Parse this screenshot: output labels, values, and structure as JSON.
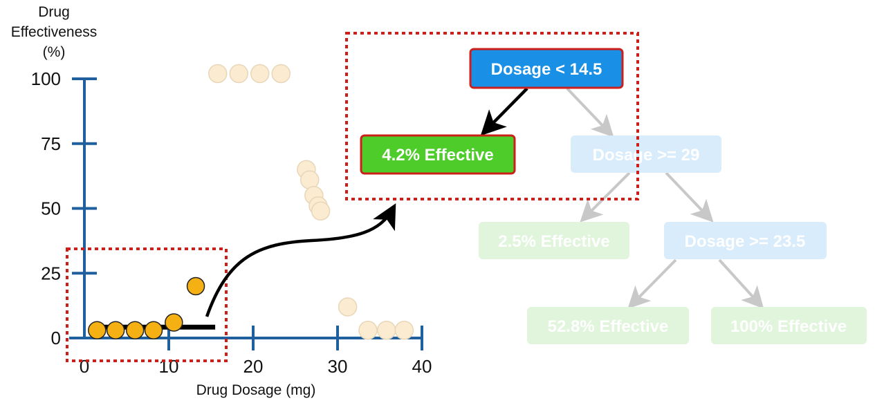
{
  "colors": {
    "axis": "#1f5f9e",
    "point_active": "#f5b014",
    "point_faded": "#faebd1",
    "fit_line": "#000000",
    "highlight_box": "#cc1f1a",
    "node_root": "#1a8fe6",
    "node_leaf_active": "#4dcc2a",
    "node_faded_blue": "#d8ecfb",
    "node_faded_green": "#e0f5dc",
    "edge_faded": "#c8c8c8"
  },
  "chart_data": {
    "type": "scatter",
    "title": "",
    "xlabel": "Drug Dosage (mg)",
    "ylabel_lines": [
      "Drug",
      "Effectiveness",
      "(%)"
    ],
    "xlim": [
      0,
      40
    ],
    "ylim": [
      0,
      100
    ],
    "xticks": [
      0,
      10,
      20,
      30,
      40
    ],
    "yticks": [
      0,
      25,
      50,
      75,
      100
    ],
    "highlighted_points": [
      {
        "x": 1.5,
        "y": 3
      },
      {
        "x": 3.7,
        "y": 3
      },
      {
        "x": 6.0,
        "y": 3
      },
      {
        "x": 8.2,
        "y": 3
      },
      {
        "x": 10.6,
        "y": 6
      },
      {
        "x": 13.2,
        "y": 20
      }
    ],
    "faded_points": [
      {
        "x": 15.8,
        "y": 102
      },
      {
        "x": 18.3,
        "y": 102
      },
      {
        "x": 20.8,
        "y": 102
      },
      {
        "x": 23.3,
        "y": 102
      },
      {
        "x": 26.3,
        "y": 65
      },
      {
        "x": 26.7,
        "y": 61
      },
      {
        "x": 27.2,
        "y": 55
      },
      {
        "x": 27.7,
        "y": 51
      },
      {
        "x": 28.0,
        "y": 49
      },
      {
        "x": 31.2,
        "y": 12
      },
      {
        "x": 33.6,
        "y": 3
      },
      {
        "x": 35.8,
        "y": 3
      },
      {
        "x": 37.9,
        "y": 3
      }
    ],
    "fit_segment": {
      "x_start": 1.0,
      "x_end": 15.5,
      "y": 4.2
    }
  },
  "tree": {
    "root": "Dosage < 14.5",
    "leaf_active": "4.2% Effective",
    "node_29": "Dosage >= 29",
    "leaf_2_5": "2.5% Effective",
    "node_23_5": "Dosage >= 23.5",
    "leaf_52_8": "52.8% Effective",
    "leaf_100": "100% Effective"
  }
}
